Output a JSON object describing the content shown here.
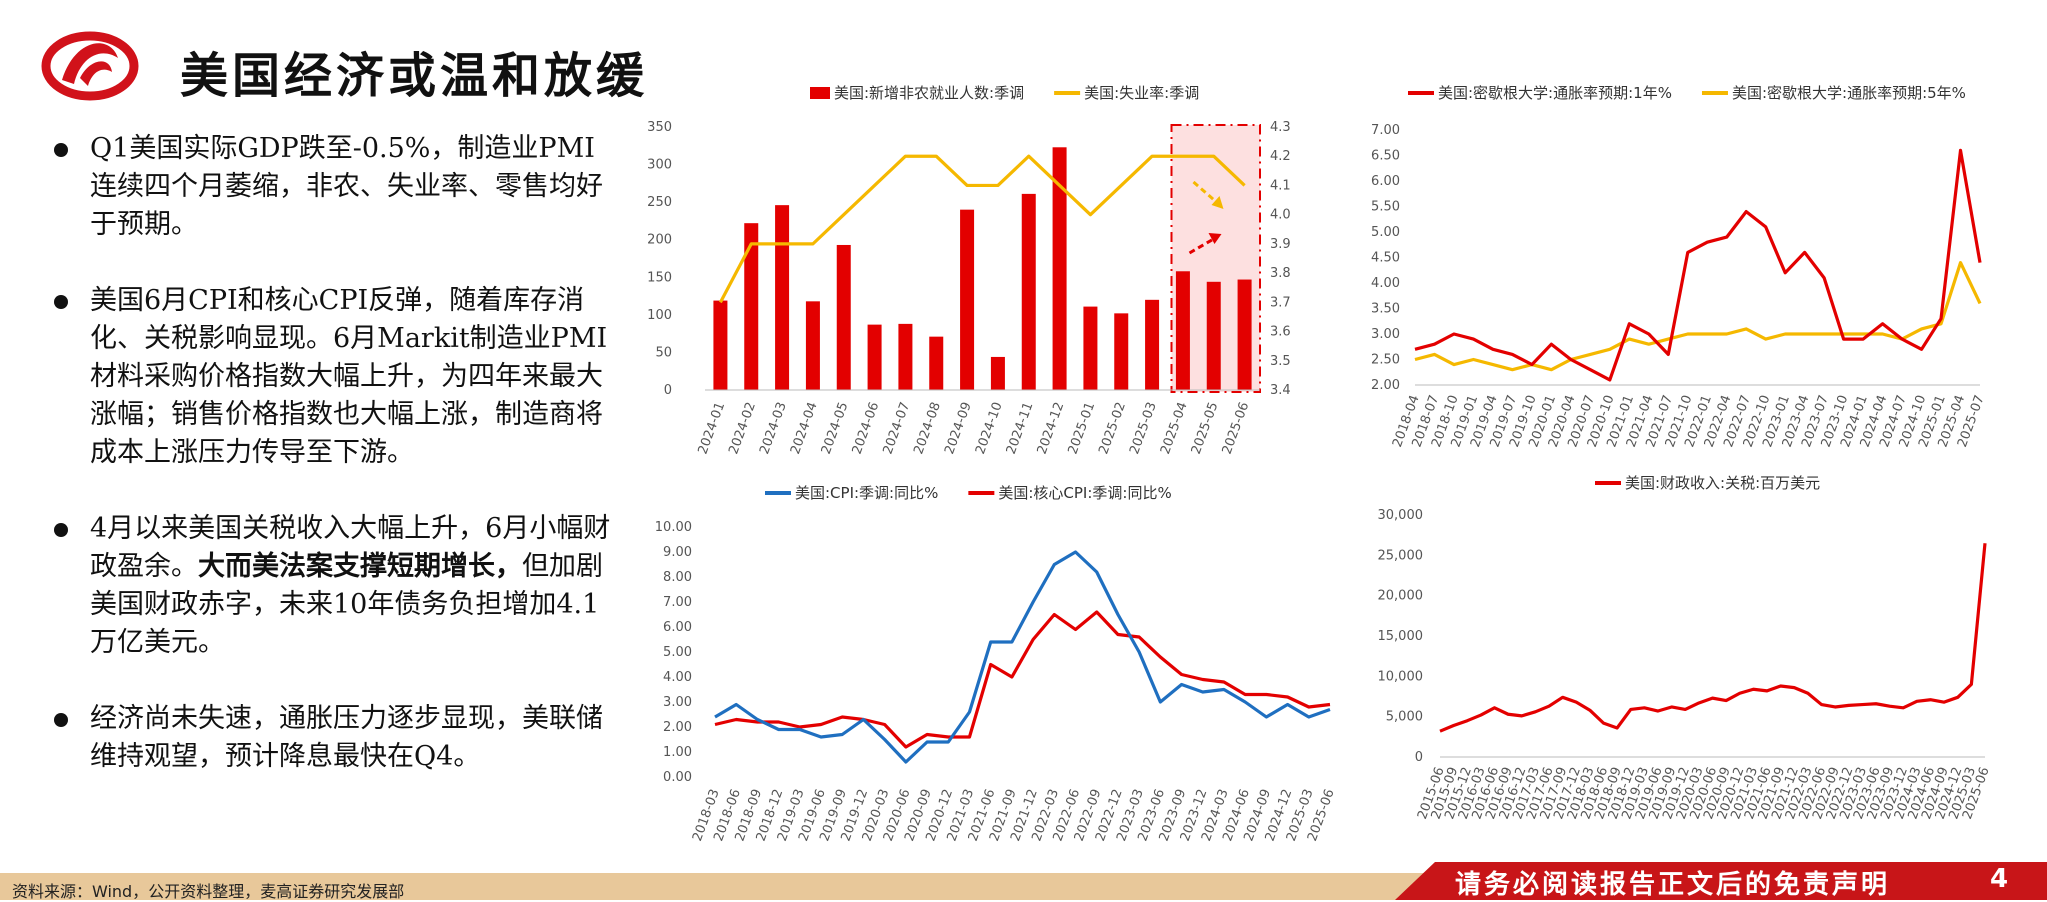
{
  "header": {
    "title": "美国经济或温和放缓"
  },
  "bullets": [
    {
      "text": "Q1美国实际GDP跌至-0.5%，制造业PMI连续四个月萎缩，非农、失业率、零售均好于预期。"
    },
    {
      "text": "美国6月CPI和核心CPI反弹，随着库存消化、关税影响显现。6月Markit制造业PMI材料采购价格指数大幅上升，为四年来最大涨幅；销售价格指数也大幅上涨，制造商将成本上涨压力传导至下游。"
    },
    {
      "text_a": "4月以来美国关税收入大幅上升，6月小幅财政盈余。",
      "text_bold": "大而美法案支撑短期增长，",
      "text_b": "但加剧美国财政赤字，未来10年债务负担增加4.1万亿美元。"
    },
    {
      "text": "经济尚未失速，通胀压力逐步显现，美联储维持观望，预计降息最快在Q4。"
    }
  ],
  "footer": {
    "source": "资料来源：Wind，公开资料整理，麦高证券研究发展部",
    "notice": "请务必阅读报告正文后的免责声明",
    "page": "4"
  },
  "colors": {
    "red": "#e30000",
    "yellow": "#f5b800",
    "blue": "#1f6fc0"
  },
  "chart_data": [
    {
      "type": "bar",
      "categories": [
        "2024-01",
        "2024-02",
        "2024-03",
        "2024-04",
        "2024-05",
        "2024-06",
        "2024-07",
        "2024-08",
        "2024-09",
        "2024-10",
        "2024-11",
        "2024-12",
        "2025-01",
        "2025-02",
        "2025-03",
        "2025-04",
        "2025-05",
        "2025-06"
      ],
      "series": [
        {
          "name": "美国:新增非农就业人数:季调",
          "type": "bar",
          "axis": "left",
          "values": [
            119,
            222,
            246,
            118,
            193,
            87,
            88,
            71,
            240,
            44,
            261,
            323,
            111,
            102,
            120,
            158,
            144,
            147
          ]
        },
        {
          "name": "美国:失业率:季调",
          "type": "line",
          "axis": "right",
          "values": [
            3.7,
            3.9,
            3.9,
            3.9,
            4.0,
            4.1,
            4.2,
            4.2,
            4.1,
            4.1,
            4.2,
            4.1,
            4.0,
            4.1,
            4.2,
            4.2,
            4.2,
            4.1
          ]
        }
      ],
      "ylim": [
        0,
        350
      ],
      "yticks": [
        "0",
        "50",
        "100",
        "150",
        "200",
        "250",
        "300",
        "350"
      ],
      "y2lim": [
        3.4,
        4.3
      ],
      "y2ticks": [
        "3.4",
        "3.5",
        "3.6",
        "3.7",
        "3.8",
        "3.9",
        "4.0",
        "4.1",
        "4.2",
        "4.3"
      ]
    },
    {
      "type": "line",
      "x_ticks": [
        "2018-04",
        "2018-07",
        "2018-10",
        "2019-01",
        "2019-04",
        "2019-07",
        "2019-10",
        "2020-01",
        "2020-04",
        "2020-07",
        "2020-10",
        "2021-01",
        "2021-04",
        "2021-07",
        "2021-10",
        "2022-01",
        "2022-04",
        "2022-07",
        "2022-10",
        "2023-01",
        "2023-04",
        "2023-07",
        "2023-10",
        "2024-01",
        "2024-04",
        "2024-07",
        "2024-10",
        "2025-01",
        "2025-04",
        "2025-07"
      ],
      "series": [
        {
          "name": "美国:密歇根大学:通胀率预期:1年%",
          "values": [
            2.7,
            2.8,
            3.0,
            2.9,
            2.7,
            2.6,
            2.4,
            2.8,
            2.5,
            2.3,
            2.1,
            3.2,
            3.0,
            2.6,
            4.6,
            4.8,
            4.9,
            5.4,
            5.1,
            4.2,
            4.6,
            4.1,
            2.9,
            2.9,
            3.2,
            2.9,
            2.7,
            3.3,
            6.6,
            4.4
          ]
        },
        {
          "name": "美国:密歇根大学:通胀率预期:5年%",
          "values": [
            2.5,
            2.6,
            2.4,
            2.5,
            2.4,
            2.3,
            2.4,
            2.3,
            2.5,
            2.6,
            2.7,
            2.9,
            2.8,
            2.9,
            3.0,
            3.0,
            3.0,
            3.1,
            2.9,
            3.0,
            3.0,
            3.0,
            3.0,
            3.0,
            3.0,
            2.9,
            3.1,
            3.2,
            4.4,
            3.6
          ]
        }
      ],
      "ylim": [
        2.0,
        7.0
      ],
      "yticks": [
        "2.00",
        "2.50",
        "3.00",
        "3.50",
        "4.00",
        "4.50",
        "5.00",
        "5.50",
        "6.00",
        "6.50",
        "7.00"
      ]
    },
    {
      "type": "line",
      "x_ticks": [
        "2018-03",
        "2018-06",
        "2018-09",
        "2018-12",
        "2019-03",
        "2019-06",
        "2019-09",
        "2019-12",
        "2020-03",
        "2020-06",
        "2020-09",
        "2020-12",
        "2021-03",
        "2021-06",
        "2021-09",
        "2021-12",
        "2022-03",
        "2022-06",
        "2022-09",
        "2022-12",
        "2023-03",
        "2023-06",
        "2023-09",
        "2023-12",
        "2024-03",
        "2024-06",
        "2024-09",
        "2024-12",
        "2025-03",
        "2025-06"
      ],
      "series": [
        {
          "name": "美国:CPI:季调:同比%",
          "values": [
            2.4,
            2.9,
            2.3,
            1.9,
            1.9,
            1.6,
            1.7,
            2.3,
            1.5,
            0.6,
            1.4,
            1.4,
            2.6,
            5.4,
            5.4,
            7.0,
            8.5,
            9.0,
            8.2,
            6.5,
            5.0,
            3.0,
            3.7,
            3.4,
            3.5,
            3.0,
            2.4,
            2.9,
            2.4,
            2.7
          ]
        },
        {
          "name": "美国:核心CPI:季调:同比%",
          "values": [
            2.1,
            2.3,
            2.2,
            2.2,
            2.0,
            2.1,
            2.4,
            2.3,
            2.1,
            1.2,
            1.7,
            1.6,
            1.6,
            4.5,
            4.0,
            5.5,
            6.5,
            5.9,
            6.6,
            5.7,
            5.6,
            4.8,
            4.1,
            3.9,
            3.8,
            3.3,
            3.3,
            3.2,
            2.8,
            2.9
          ]
        }
      ],
      "ylim": [
        0,
        10
      ],
      "yticks": [
        "0.00",
        "1.00",
        "2.00",
        "3.00",
        "4.00",
        "5.00",
        "6.00",
        "7.00",
        "8.00",
        "9.00",
        "10.00"
      ]
    },
    {
      "type": "line",
      "x_ticks": [
        "2015-06",
        "2015-09",
        "2015-12",
        "2016-03",
        "2016-06",
        "2016-09",
        "2016-12",
        "2017-03",
        "2017-06",
        "2017-09",
        "2017-12",
        "2018-03",
        "2018-06",
        "2018-09",
        "2018-12",
        "2019-03",
        "2019-06",
        "2019-09",
        "2019-12",
        "2020-03",
        "2020-06",
        "2020-09",
        "2020-12",
        "2021-03",
        "2021-06",
        "2021-09",
        "2021-12",
        "2022-03",
        "2022-06",
        "2022-09",
        "2022-12",
        "2023-03",
        "2023-06",
        "2023-09",
        "2023-12",
        "2024-03",
        "2024-06",
        "2024-09",
        "2024-12",
        "2025-03",
        "2025-06"
      ],
      "x_tick_labels_shown": [
        "2015-06",
        "2015-09",
        "2015-12",
        "2016-03",
        "2016-06",
        "2016-09",
        "2016-12",
        "2017-03",
        "2017-06",
        "2017-09",
        "2017-12",
        "2018-03",
        "2018-06",
        "2018-09",
        "2018-12",
        "2019-03",
        "2019-06",
        "2019-09",
        "2019-12",
        "2020-03",
        "2020-06",
        "2020-09",
        "2020-12",
        "2021-03",
        "2021-06",
        "2021-09",
        "2021-12",
        "2022-03",
        "2022-06",
        "2022-09",
        "2022-12",
        "2023-03",
        "2023-06",
        "2023-09",
        "2023-12",
        "2024-03",
        "2024-06",
        "2024-09",
        "2024-12",
        "2025-03",
        "2025-06"
      ],
      "series": [
        {
          "name": "美国:财政收入:关税:百万美元",
          "values": [
            3200,
            3900,
            4500,
            5200,
            6100,
            5300,
            5100,
            5600,
            6300,
            7400,
            6800,
            5800,
            4200,
            3600,
            5900,
            6100,
            5700,
            6200,
            5900,
            6700,
            7300,
            7000,
            7900,
            8400,
            8200,
            8800,
            8600,
            7900,
            6500,
            6200,
            6400,
            6500,
            6600,
            6300,
            6100,
            6900,
            7100,
            6800,
            7400,
            9000,
            26500
          ]
        }
      ],
      "ylim": [
        0,
        30000
      ],
      "yticks": [
        "0",
        "5,000",
        "10,000",
        "15,000",
        "20,000",
        "25,000",
        "30,000"
      ]
    }
  ]
}
